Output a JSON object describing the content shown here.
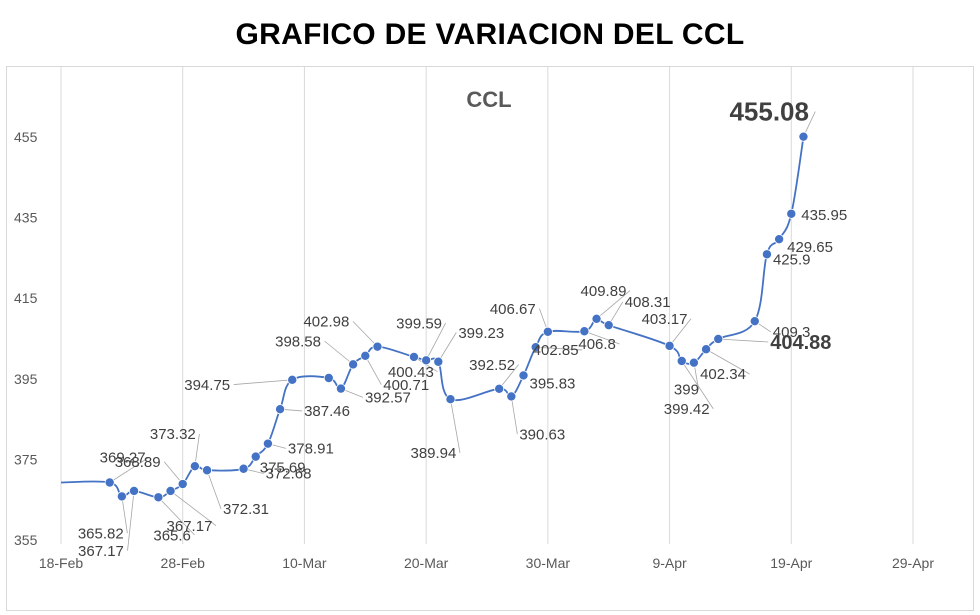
{
  "page": {
    "title": "GRAFICO DE VARIACION DEL CCL"
  },
  "chart_data": {
    "type": "line",
    "title": "CCL",
    "xlabel": "",
    "ylabel": "",
    "ylim": [
      355,
      455
    ],
    "yticks": [
      355,
      375,
      395,
      415,
      435,
      455
    ],
    "xlim": [
      "2022-02-18",
      "2022-04-29"
    ],
    "xticks": [
      {
        "date": "2022-02-18",
        "label": "18-Feb"
      },
      {
        "date": "2022-02-28",
        "label": "28-Feb"
      },
      {
        "date": "2022-03-10",
        "label": "10-Mar"
      },
      {
        "date": "2022-03-20",
        "label": "20-Mar"
      },
      {
        "date": "2022-03-30",
        "label": "30-Mar"
      },
      {
        "date": "2022-04-09",
        "label": "9-Apr"
      },
      {
        "date": "2022-04-19",
        "label": "19-Apr"
      },
      {
        "date": "2022-04-29",
        "label": "29-Apr"
      }
    ],
    "grid": "vertical",
    "color": "#4472c4",
    "series": [
      {
        "name": "",
        "points": [
          {
            "x": "2022-02-22",
            "y": 369.27,
            "label": "369.27"
          },
          {
            "x": "2022-02-23",
            "y": 365.82,
            "label": "365.82"
          },
          {
            "x": "2022-02-24",
            "y": 367.17,
            "label": "367.17"
          },
          {
            "x": "2022-02-26",
            "y": 365.6,
            "label": "365.6"
          },
          {
            "x": "2022-02-27",
            "y": 367.17,
            "label": "367.17"
          },
          {
            "x": "2022-02-28",
            "y": 368.89,
            "label": "368.89"
          },
          {
            "x": "2022-03-01",
            "y": 373.32,
            "label": "373.32"
          },
          {
            "x": "2022-03-02",
            "y": 372.31,
            "label": "372.31"
          },
          {
            "x": "2022-03-05",
            "y": 372.68,
            "label": "372.68"
          },
          {
            "x": "2022-03-06",
            "y": 375.69,
            "label": "375.69"
          },
          {
            "x": "2022-03-07",
            "y": 378.91,
            "label": "378.91"
          },
          {
            "x": "2022-03-08",
            "y": 387.46,
            "label": "387.46"
          },
          {
            "x": "2022-03-09",
            "y": 394.75,
            "label": "394.75"
          },
          {
            "x": "2022-03-12",
            "y": 395.2,
            "label": ""
          },
          {
            "x": "2022-03-13",
            "y": 392.57,
            "label": "392.57"
          },
          {
            "x": "2022-03-14",
            "y": 398.58,
            "label": "398.58"
          },
          {
            "x": "2022-03-15",
            "y": 400.71,
            "label": "400.71"
          },
          {
            "x": "2022-03-16",
            "y": 402.98,
            "label": "402.98"
          },
          {
            "x": "2022-03-19",
            "y": 400.43,
            "label": "400.43"
          },
          {
            "x": "2022-03-20",
            "y": 399.59,
            "label": "399.59"
          },
          {
            "x": "2022-03-21",
            "y": 399.23,
            "label": "399.23"
          },
          {
            "x": "2022-03-22",
            "y": 389.94,
            "label": "389.94"
          },
          {
            "x": "2022-03-26",
            "y": 392.52,
            "label": "392.52"
          },
          {
            "x": "2022-03-27",
            "y": 390.63,
            "label": "390.63"
          },
          {
            "x": "2022-03-28",
            "y": 395.83,
            "label": "395.83"
          },
          {
            "x": "2022-03-29",
            "y": 402.85,
            "label": "402.85"
          },
          {
            "x": "2022-03-30",
            "y": 406.67,
            "label": "406.67"
          },
          {
            "x": "2022-04-02",
            "y": 406.8,
            "label": "406.8"
          },
          {
            "x": "2022-04-03",
            "y": 409.89,
            "label": "409.89"
          },
          {
            "x": "2022-04-04",
            "y": 408.31,
            "label": "408.31"
          },
          {
            "x": "2022-04-09",
            "y": 403.17,
            "label": "403.17"
          },
          {
            "x": "2022-04-10",
            "y": 399.42,
            "label": "399.42"
          },
          {
            "x": "2022-04-11",
            "y": 399.0,
            "label": "399"
          },
          {
            "x": "2022-04-12",
            "y": 402.34,
            "label": "402.34"
          },
          {
            "x": "2022-04-13",
            "y": 404.88,
            "label": "404.88",
            "emphasis": "big"
          },
          {
            "x": "2022-04-16",
            "y": 409.3,
            "label": "409.3"
          },
          {
            "x": "2022-04-17",
            "y": 425.9,
            "label": "425.9"
          },
          {
            "x": "2022-04-18",
            "y": 429.65,
            "label": "429.65"
          },
          {
            "x": "2022-04-19",
            "y": 435.95,
            "label": "435.95"
          },
          {
            "x": "2022-04-20",
            "y": 455.08,
            "label": "455.08",
            "emphasis": "huge"
          }
        ]
      }
    ]
  }
}
